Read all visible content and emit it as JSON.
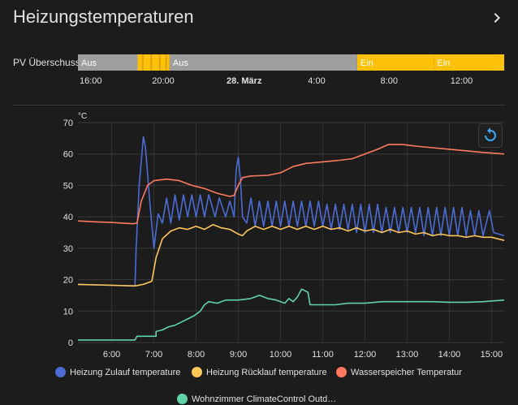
{
  "card": {
    "title": "Heizungstemperaturen",
    "more_icon": "chevron-right-icon"
  },
  "timeline": {
    "label": "PV Überschuss",
    "segments": [
      {
        "text": "Aus",
        "state": "off",
        "start": 0.0,
        "end": 0.14
      },
      {
        "text": "",
        "state": "on",
        "start": 0.14,
        "end": 0.215
      },
      {
        "text": "Aus",
        "state": "off",
        "start": 0.215,
        "end": 0.655
      },
      {
        "text": "Ein",
        "state": "on",
        "start": 0.655,
        "end": 0.835
      },
      {
        "text": "Ein",
        "state": "on",
        "start": 0.835,
        "end": 1.0
      }
    ],
    "ticks": [
      {
        "label": "16:00",
        "pos": 0.03,
        "bold": false
      },
      {
        "label": "20:00",
        "pos": 0.2,
        "bold": false
      },
      {
        "label": "28. März",
        "pos": 0.39,
        "bold": true
      },
      {
        "label": "4:00",
        "pos": 0.56,
        "bold": false
      },
      {
        "label": "8:00",
        "pos": 0.73,
        "bold": false
      },
      {
        "label": "12:00",
        "pos": 0.9,
        "bold": false
      }
    ],
    "colors": {
      "on": "#ffc107",
      "off": "#9e9e9e"
    }
  },
  "reset_icon": "reset-zoom-icon",
  "chart_data": {
    "type": "line",
    "unit": "°C",
    "ylim": [
      0,
      70
    ],
    "yticks": [
      0,
      10,
      20,
      30,
      40,
      50,
      60,
      70
    ],
    "xlim": [
      5.2,
      15.3
    ],
    "xticks": [
      {
        "t": 6,
        "label": "6:00"
      },
      {
        "t": 7,
        "label": "7:00"
      },
      {
        "t": 8,
        "label": "8:00"
      },
      {
        "t": 9,
        "label": "9:00"
      },
      {
        "t": 10,
        "label": "10:00"
      },
      {
        "t": 11,
        "label": "11:00"
      },
      {
        "t": 12,
        "label": "12:00"
      },
      {
        "t": 13,
        "label": "13:00"
      },
      {
        "t": 14,
        "label": "14:00"
      },
      {
        "t": 15,
        "label": "15:00"
      }
    ],
    "grid": true,
    "series": [
      {
        "name": "Heizung Zulauf temperature",
        "color": "#4b6cd4",
        "points": [
          [
            5.2,
            18.5
          ],
          [
            6.0,
            18.2
          ],
          [
            6.55,
            18.0
          ],
          [
            6.58,
            30
          ],
          [
            6.65,
            50
          ],
          [
            6.75,
            65.5
          ],
          [
            6.8,
            62
          ],
          [
            6.9,
            45
          ],
          [
            7.0,
            30
          ],
          [
            7.1,
            41
          ],
          [
            7.2,
            38
          ],
          [
            7.3,
            46
          ],
          [
            7.4,
            38
          ],
          [
            7.5,
            47
          ],
          [
            7.6,
            39
          ],
          [
            7.7,
            47
          ],
          [
            7.8,
            40
          ],
          [
            7.9,
            47
          ],
          [
            8.0,
            40
          ],
          [
            8.1,
            47
          ],
          [
            8.2,
            40
          ],
          [
            8.3,
            47
          ],
          [
            8.45,
            40
          ],
          [
            8.55,
            46
          ],
          [
            8.7,
            40
          ],
          [
            8.8,
            45
          ],
          [
            8.9,
            40
          ],
          [
            8.95,
            55
          ],
          [
            9.0,
            59
          ],
          [
            9.05,
            52
          ],
          [
            9.1,
            40
          ],
          [
            9.2,
            38
          ],
          [
            9.3,
            46
          ],
          [
            9.4,
            37
          ],
          [
            9.5,
            45
          ],
          [
            9.6,
            37
          ],
          [
            9.7,
            45
          ],
          [
            9.8,
            37
          ],
          [
            9.9,
            45
          ],
          [
            10.0,
            37
          ],
          [
            10.1,
            45
          ],
          [
            10.2,
            37
          ],
          [
            10.3,
            45
          ],
          [
            10.4,
            37
          ],
          [
            10.5,
            45
          ],
          [
            10.6,
            37
          ],
          [
            10.7,
            45
          ],
          [
            10.8,
            37
          ],
          [
            10.9,
            45
          ],
          [
            11.0,
            37
          ],
          [
            11.1,
            44
          ],
          [
            11.2,
            36
          ],
          [
            11.3,
            44
          ],
          [
            11.4,
            36
          ],
          [
            11.5,
            44
          ],
          [
            11.6,
            36
          ],
          [
            11.7,
            44
          ],
          [
            11.8,
            35
          ],
          [
            11.9,
            44
          ],
          [
            12.0,
            35
          ],
          [
            12.1,
            44
          ],
          [
            12.2,
            35
          ],
          [
            12.3,
            44
          ],
          [
            12.4,
            35
          ],
          [
            12.5,
            43
          ],
          [
            12.6,
            35
          ],
          [
            12.7,
            43
          ],
          [
            12.8,
            35
          ],
          [
            12.9,
            43
          ],
          [
            13.0,
            35
          ],
          [
            13.1,
            43
          ],
          [
            13.2,
            35
          ],
          [
            13.3,
            43
          ],
          [
            13.4,
            34
          ],
          [
            13.5,
            43
          ],
          [
            13.6,
            34
          ],
          [
            13.7,
            43
          ],
          [
            13.8,
            34
          ],
          [
            13.9,
            43
          ],
          [
            14.0,
            34
          ],
          [
            14.1,
            43
          ],
          [
            14.2,
            34
          ],
          [
            14.3,
            43
          ],
          [
            14.4,
            34
          ],
          [
            14.5,
            42
          ],
          [
            14.6,
            34
          ],
          [
            14.7,
            42
          ],
          [
            14.8,
            34
          ],
          [
            14.95,
            42
          ],
          [
            15.05,
            35
          ],
          [
            15.3,
            34
          ]
        ]
      },
      {
        "name": "Heizung Rücklauf temperature",
        "color": "#ffc658",
        "points": [
          [
            5.2,
            18.5
          ],
          [
            6.0,
            18.2
          ],
          [
            6.55,
            18.0
          ],
          [
            6.75,
            18.5
          ],
          [
            6.95,
            19.5
          ],
          [
            7.05,
            27
          ],
          [
            7.2,
            33
          ],
          [
            7.4,
            35.5
          ],
          [
            7.6,
            36.5
          ],
          [
            7.8,
            36
          ],
          [
            8.0,
            37
          ],
          [
            8.2,
            36
          ],
          [
            8.4,
            37.5
          ],
          [
            8.6,
            36.5
          ],
          [
            8.8,
            36
          ],
          [
            9.0,
            34.5
          ],
          [
            9.1,
            34
          ],
          [
            9.2,
            35.5
          ],
          [
            9.4,
            37
          ],
          [
            9.6,
            36
          ],
          [
            9.8,
            37
          ],
          [
            10.0,
            36
          ],
          [
            10.2,
            37
          ],
          [
            10.4,
            36
          ],
          [
            10.6,
            37
          ],
          [
            10.8,
            36
          ],
          [
            11.0,
            37
          ],
          [
            11.2,
            36
          ],
          [
            11.4,
            36.5
          ],
          [
            11.6,
            35.5
          ],
          [
            11.8,
            36.5
          ],
          [
            12.0,
            35.5
          ],
          [
            12.2,
            36
          ],
          [
            12.4,
            35
          ],
          [
            12.6,
            36
          ],
          [
            12.8,
            35
          ],
          [
            13.0,
            35.5
          ],
          [
            13.2,
            34.5
          ],
          [
            13.4,
            35
          ],
          [
            13.6,
            34
          ],
          [
            13.8,
            34.5
          ],
          [
            14.0,
            34
          ],
          [
            14.2,
            34
          ],
          [
            14.4,
            33.5
          ],
          [
            14.6,
            34
          ],
          [
            14.8,
            33.5
          ],
          [
            15.0,
            33.5
          ],
          [
            15.3,
            32.5
          ]
        ]
      },
      {
        "name": "Wasserspeicher Temperatur",
        "color": "#ff7a60",
        "points": [
          [
            5.2,
            38.7
          ],
          [
            5.6,
            38.4
          ],
          [
            6.0,
            38.2
          ],
          [
            6.5,
            37.8
          ],
          [
            6.6,
            38
          ],
          [
            6.7,
            45
          ],
          [
            6.85,
            50
          ],
          [
            7.0,
            51.5
          ],
          [
            7.3,
            52
          ],
          [
            7.6,
            51.5
          ],
          [
            7.9,
            50
          ],
          [
            8.2,
            49
          ],
          [
            8.5,
            47.5
          ],
          [
            8.8,
            46.5
          ],
          [
            8.9,
            46.8
          ],
          [
            9.0,
            50
          ],
          [
            9.1,
            52.5
          ],
          [
            9.3,
            53
          ],
          [
            9.7,
            53.2
          ],
          [
            10.0,
            54
          ],
          [
            10.3,
            56
          ],
          [
            10.6,
            57
          ],
          [
            11.0,
            57.5
          ],
          [
            11.4,
            58
          ],
          [
            11.7,
            58.5
          ],
          [
            12.0,
            60
          ],
          [
            12.3,
            61.5
          ],
          [
            12.55,
            63
          ],
          [
            12.9,
            63
          ],
          [
            13.2,
            62.5
          ],
          [
            13.6,
            62
          ],
          [
            14.0,
            61.5
          ],
          [
            14.4,
            61
          ],
          [
            14.8,
            60.5
          ],
          [
            15.3,
            60
          ]
        ]
      },
      {
        "name": "Wohnzimmer ClimateControl Outd…",
        "color": "#62d3a9",
        "points": [
          [
            5.2,
            0.8
          ],
          [
            6.0,
            0.8
          ],
          [
            6.55,
            0.8
          ],
          [
            6.6,
            2
          ],
          [
            7.05,
            2
          ],
          [
            7.05,
            3.5
          ],
          [
            7.2,
            4
          ],
          [
            7.35,
            5
          ],
          [
            7.5,
            5.5
          ],
          [
            7.65,
            6.5
          ],
          [
            7.8,
            7.5
          ],
          [
            7.95,
            8.5
          ],
          [
            8.1,
            10
          ],
          [
            8.2,
            12
          ],
          [
            8.3,
            13
          ],
          [
            8.5,
            12.5
          ],
          [
            8.7,
            13.5
          ],
          [
            9.0,
            13.5
          ],
          [
            9.3,
            14
          ],
          [
            9.5,
            15
          ],
          [
            9.7,
            14
          ],
          [
            9.9,
            13.5
          ],
          [
            10.1,
            12.5
          ],
          [
            10.2,
            14
          ],
          [
            10.3,
            13
          ],
          [
            10.4,
            14.5
          ],
          [
            10.5,
            17
          ],
          [
            10.65,
            16
          ],
          [
            10.7,
            12
          ],
          [
            11.0,
            12
          ],
          [
            11.3,
            12
          ],
          [
            11.6,
            12.5
          ],
          [
            12.0,
            12.5
          ],
          [
            12.4,
            13
          ],
          [
            12.8,
            13
          ],
          [
            13.2,
            13
          ],
          [
            13.6,
            13
          ],
          [
            14.0,
            12.8
          ],
          [
            14.4,
            12.8
          ],
          [
            14.8,
            13
          ],
          [
            15.3,
            13.5
          ]
        ]
      }
    ]
  },
  "legend": {
    "items": [
      {
        "label": "Heizung Zulauf temperature",
        "color": "#4b6cd4"
      },
      {
        "label": "Heizung Rücklauf temperature",
        "color": "#ffc658"
      },
      {
        "label": "Wasserspeicher Temperatur",
        "color": "#ff7a60"
      },
      {
        "label": "Wohnzimmer ClimateControl Outd…",
        "color": "#62d3a9"
      }
    ]
  }
}
